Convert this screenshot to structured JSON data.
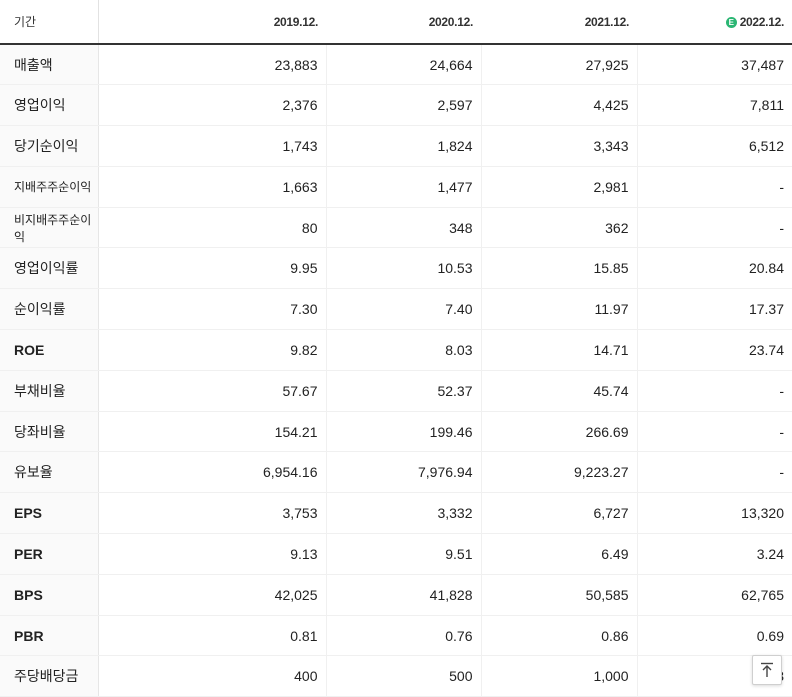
{
  "header": {
    "label": "기간",
    "periods": [
      "2019.12.",
      "2020.12.",
      "2021.12.",
      "2022.12."
    ],
    "estimate_mark": "E",
    "estimate_color": "#2bb673"
  },
  "rows": [
    {
      "label": "매출액",
      "values": [
        "23,883",
        "24,664",
        "27,925",
        "37,487"
      ]
    },
    {
      "label": "영업이익",
      "values": [
        "2,376",
        "2,597",
        "4,425",
        "7,811"
      ]
    },
    {
      "label": "당기순이익",
      "values": [
        "1,743",
        "1,824",
        "3,343",
        "6,512"
      ]
    },
    {
      "label": "지배주주순이익",
      "values": [
        "1,663",
        "1,477",
        "2,981",
        "-"
      ]
    },
    {
      "label": "비지배주주순이익",
      "values": [
        "80",
        "348",
        "362",
        "-"
      ]
    },
    {
      "label": "영업이익률",
      "values": [
        "9.95",
        "10.53",
        "15.85",
        "20.84"
      ]
    },
    {
      "label": "순이익률",
      "values": [
        "7.30",
        "7.40",
        "11.97",
        "17.37"
      ]
    },
    {
      "label": "ROE",
      "values": [
        "9.82",
        "8.03",
        "14.71",
        "23.74"
      ]
    },
    {
      "label": "부채비율",
      "values": [
        "57.67",
        "52.37",
        "45.74",
        "-"
      ]
    },
    {
      "label": "당좌비율",
      "values": [
        "154.21",
        "199.46",
        "266.69",
        "-"
      ]
    },
    {
      "label": "유보율",
      "values": [
        "6,954.16",
        "7,976.94",
        "9,223.27",
        "-"
      ]
    },
    {
      "label": "EPS",
      "values": [
        "3,753",
        "3,332",
        "6,727",
        "13,320"
      ]
    },
    {
      "label": "PER",
      "values": [
        "9.13",
        "9.51",
        "6.49",
        "3.24"
      ]
    },
    {
      "label": "BPS",
      "values": [
        "42,025",
        "41,828",
        "50,585",
        "62,765"
      ]
    },
    {
      "label": "PBR",
      "values": [
        "0.81",
        "0.76",
        "0.86",
        "0.69"
      ]
    },
    {
      "label": "주당배당금",
      "values": [
        "400",
        "500",
        "1,000",
        "3"
      ]
    }
  ],
  "scroll_top_icon": "arrow-up-to-top-icon"
}
